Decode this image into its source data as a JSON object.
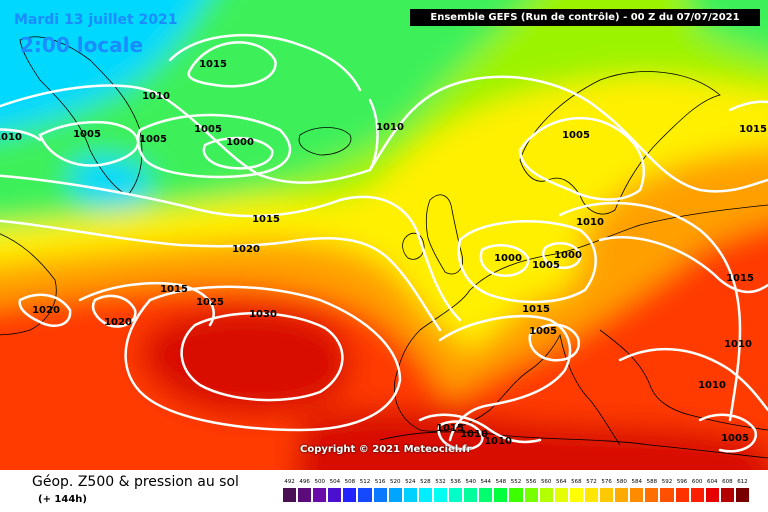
{
  "header": {
    "run_info": "Ensemble GEFS  (Run de contrôle)  -  00 Z du 07/07/2021"
  },
  "overlay": {
    "date": "Mardi 13 juillet 2021",
    "local_time": "2:00 locale",
    "copyright": "Copyright © 2021 Meteociel.fr"
  },
  "footer": {
    "title": "Géop. Z500 & pression au sol",
    "lead_time": "(+ 144h)"
  },
  "scale": {
    "labels": [
      "492",
      "496",
      "500",
      "504",
      "508",
      "512",
      "516",
      "520",
      "524",
      "528",
      "532",
      "536",
      "540",
      "544",
      "548",
      "552",
      "556",
      "560",
      "564",
      "568",
      "572",
      "576",
      "580",
      "584",
      "588",
      "592",
      "596",
      "600",
      "604",
      "608",
      "612"
    ],
    "colors": [
      "#4b0f54",
      "#5c0c7a",
      "#6a0aa8",
      "#4b0fd0",
      "#2323ff",
      "#1449ff",
      "#0a78ff",
      "#00a5ff",
      "#00d0ff",
      "#00eeff",
      "#00fff0",
      "#00ffc8",
      "#00ff9c",
      "#00ff6e",
      "#00ff3c",
      "#3cff00",
      "#78ff00",
      "#b4ff00",
      "#e6ff00",
      "#ffff00",
      "#ffe600",
      "#ffc800",
      "#ffaa00",
      "#ff8c00",
      "#ff6e00",
      "#ff5000",
      "#ff3200",
      "#ff1e00",
      "#e60000",
      "#b40000",
      "#780000"
    ]
  },
  "map": {
    "colors": {
      "cyan": "#00d8ff",
      "green": "#3cf05a",
      "lime": "#9cf300",
      "yellow": "#fff000",
      "orange": "#ffa000",
      "red": "#ff3a00",
      "darkred": "#d80a00"
    },
    "isobar_labels": [
      "1015",
      "1010",
      "1010",
      "1005",
      "1005",
      "1005",
      "1000",
      "1010",
      "1005",
      "1015",
      "1020",
      "1015",
      "1025",
      "1030",
      "1020",
      "1020",
      "1000",
      "1005",
      "1000",
      "1010",
      "1015",
      "1015",
      "1005",
      "1010",
      "1010",
      "1015",
      "1010",
      "1005",
      "1015",
      "1010"
    ]
  }
}
